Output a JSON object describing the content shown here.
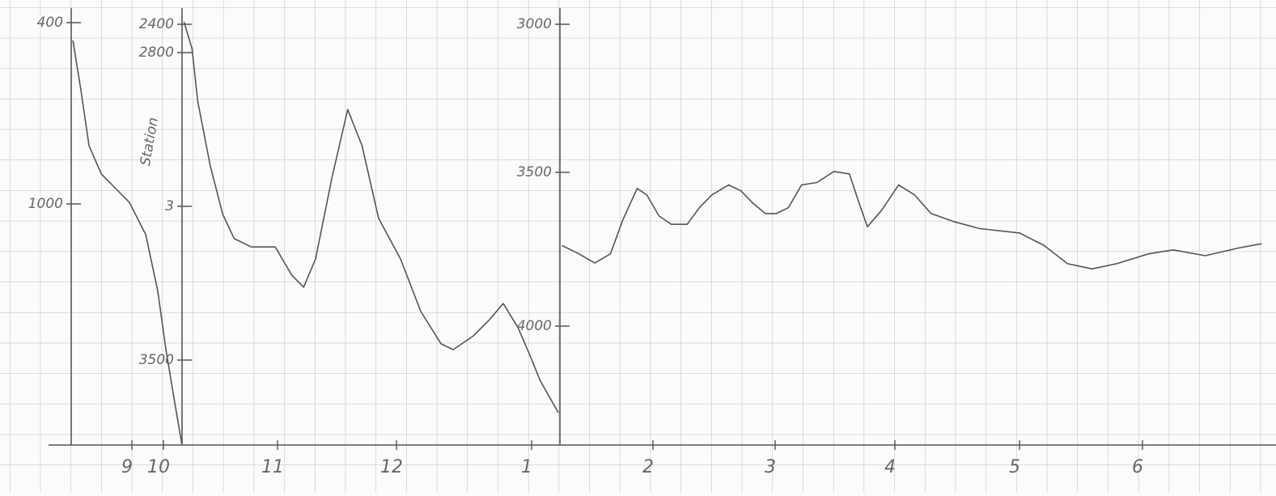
{
  "chart_data": {
    "type": "line",
    "annotation": "Station",
    "xlim": [
      6.36,
      19.09
    ],
    "xticks": [
      9,
      10,
      11,
      12,
      {
        "value": 13,
        "label": "1"
      },
      {
        "value": 14,
        "label": "2"
      },
      {
        "value": 15,
        "label": "3"
      },
      {
        "value": 16,
        "label": "4"
      },
      {
        "value": 17,
        "label": "5"
      },
      {
        "value": 18,
        "label": "6"
      }
    ],
    "segments": [
      {
        "color": "#555555",
        "ylim": [
          352,
          1798
        ],
        "yticks": [
          400,
          1000
        ],
        "x": [
          7.13,
          7.38,
          7.64,
          8.03,
          8.41,
          8.92,
          9.44,
          9.82,
          10.02,
          10.09,
          10.16
        ],
        "values": [
          459,
          620,
          807,
          901,
          941,
          995,
          1102,
          1289,
          1477,
          1638,
          1793
        ]
      },
      {
        "color": "#555555",
        "ylim": [
          2171,
          3776
        ],
        "yticks": [
          2400,
          2800,
          {
            "value": 3000,
            "label": "3"
          },
          3500
        ],
        "x": [
          10.18,
          10.25,
          10.3,
          10.41,
          10.52,
          10.62,
          10.77,
          10.98,
          11.12,
          11.22,
          11.32,
          11.46,
          11.59,
          11.71,
          11.85,
          12.03,
          12.18,
          12.33,
          12.42,
          12.57,
          12.69,
          12.79,
          12.9,
          12.99,
          13.07,
          13.22
        ],
        "values": [
          2366,
          2743,
          2863,
          2947,
          3026,
          3105,
          3132,
          3132,
          3224,
          3263,
          3171,
          2961,
          2874,
          2921,
          3039,
          3171,
          3342,
          3447,
          3466,
          3421,
          3368,
          3316,
          3395,
          3487,
          3566,
          3671
        ]
      },
      {
        "color": "#555555",
        "ylim": [
          2945,
          4387
        ],
        "yticks": [
          3000,
          3500,
          4000
        ],
        "x": [
          13.25,
          13.39,
          13.52,
          13.65,
          13.75,
          13.87,
          13.95,
          14.05,
          14.15,
          14.28,
          14.38,
          14.48,
          14.62,
          14.72,
          14.82,
          14.92,
          15.01,
          15.11,
          15.22,
          15.35,
          15.49,
          15.62,
          15.69,
          15.77,
          15.89,
          16.03,
          16.16,
          16.29,
          16.48,
          16.68,
          17.0,
          17.2,
          17.39,
          17.59,
          17.79,
          18.05,
          18.25,
          18.51,
          18.78,
          18.97
        ],
        "values": [
          3738,
          3765,
          3795,
          3765,
          3656,
          3552,
          3574,
          3642,
          3669,
          3669,
          3615,
          3574,
          3541,
          3560,
          3601,
          3634,
          3634,
          3615,
          3541,
          3533,
          3497,
          3505,
          3587,
          3677,
          3623,
          3541,
          3574,
          3634,
          3661,
          3683,
          3697,
          3738,
          3797,
          3814,
          3797,
          3765,
          3752,
          3771,
          3746,
          3732
        ]
      }
    ]
  }
}
